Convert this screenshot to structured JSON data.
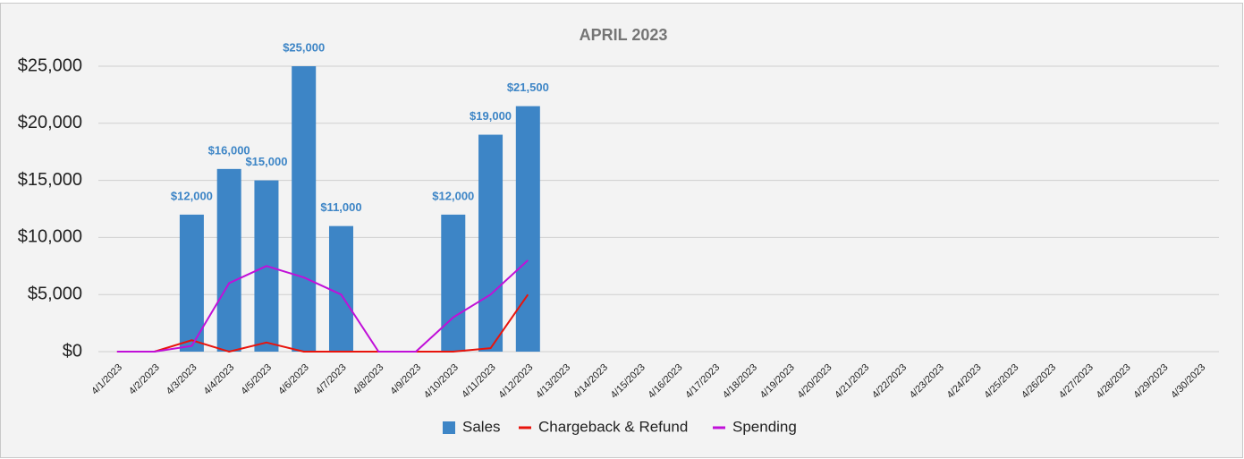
{
  "chart_data": {
    "type": "bar",
    "title": "APRIL 2023",
    "categories": [
      "4/1/2023",
      "4/2/2023",
      "4/3/2023",
      "4/4/2023",
      "4/5/2023",
      "4/6/2023",
      "4/7/2023",
      "4/8/2023",
      "4/9/2023",
      "4/10/2023",
      "4/11/2023",
      "4/12/2023",
      "4/13/2023",
      "4/14/2023",
      "4/15/2023",
      "4/16/2023",
      "4/17/2023",
      "4/18/2023",
      "4/19/2023",
      "4/20/2023",
      "4/21/2023",
      "4/22/2023",
      "4/23/2023",
      "4/24/2023",
      "4/25/2023",
      "4/26/2023",
      "4/27/2023",
      "4/28/2023",
      "4/29/2023",
      "4/30/2023"
    ],
    "series": [
      {
        "name": "Sales",
        "type": "bar",
        "color": "#3d85c6",
        "values": [
          null,
          null,
          12000,
          16000,
          15000,
          25000,
          11000,
          null,
          null,
          12000,
          19000,
          21500,
          null,
          null,
          null,
          null,
          null,
          null,
          null,
          null,
          null,
          null,
          null,
          null,
          null,
          null,
          null,
          null,
          null,
          null
        ],
        "value_labels": [
          null,
          null,
          "$12,000",
          "$16,000",
          "$15,000",
          "$25,000",
          "$11,000",
          null,
          null,
          "$12,000",
          "$19,000",
          "$21,500",
          null,
          null,
          null,
          null,
          null,
          null,
          null,
          null,
          null,
          null,
          null,
          null,
          null,
          null,
          null,
          null,
          null,
          null
        ]
      },
      {
        "name": "Chargeback & Refund",
        "type": "line",
        "color": "#e8140c",
        "values": [
          0,
          0,
          1000,
          0,
          800,
          0,
          0,
          0,
          0,
          0,
          300,
          5000,
          null,
          null,
          null,
          null,
          null,
          null,
          null,
          null,
          null,
          null,
          null,
          null,
          null,
          null,
          null,
          null,
          null,
          null
        ]
      },
      {
        "name": "Spending",
        "type": "line",
        "color": "#c010d8",
        "values": [
          0,
          0,
          500,
          6000,
          7500,
          6500,
          5000,
          0,
          0,
          3000,
          5000,
          8000,
          null,
          null,
          null,
          null,
          null,
          null,
          null,
          null,
          null,
          null,
          null,
          null,
          null,
          null,
          null,
          null,
          null,
          null
        ]
      }
    ],
    "ylim": [
      0,
      25000
    ],
    "yticks": [
      {
        "value": 0,
        "label": "$0"
      },
      {
        "value": 5000,
        "label": "$5,000"
      },
      {
        "value": 10000,
        "label": "$10,000"
      },
      {
        "value": 15000,
        "label": "$15,000"
      },
      {
        "value": 20000,
        "label": "$20,000"
      },
      {
        "value": 25000,
        "label": "$25,000"
      }
    ],
    "grid": true,
    "legend": "bottom"
  }
}
